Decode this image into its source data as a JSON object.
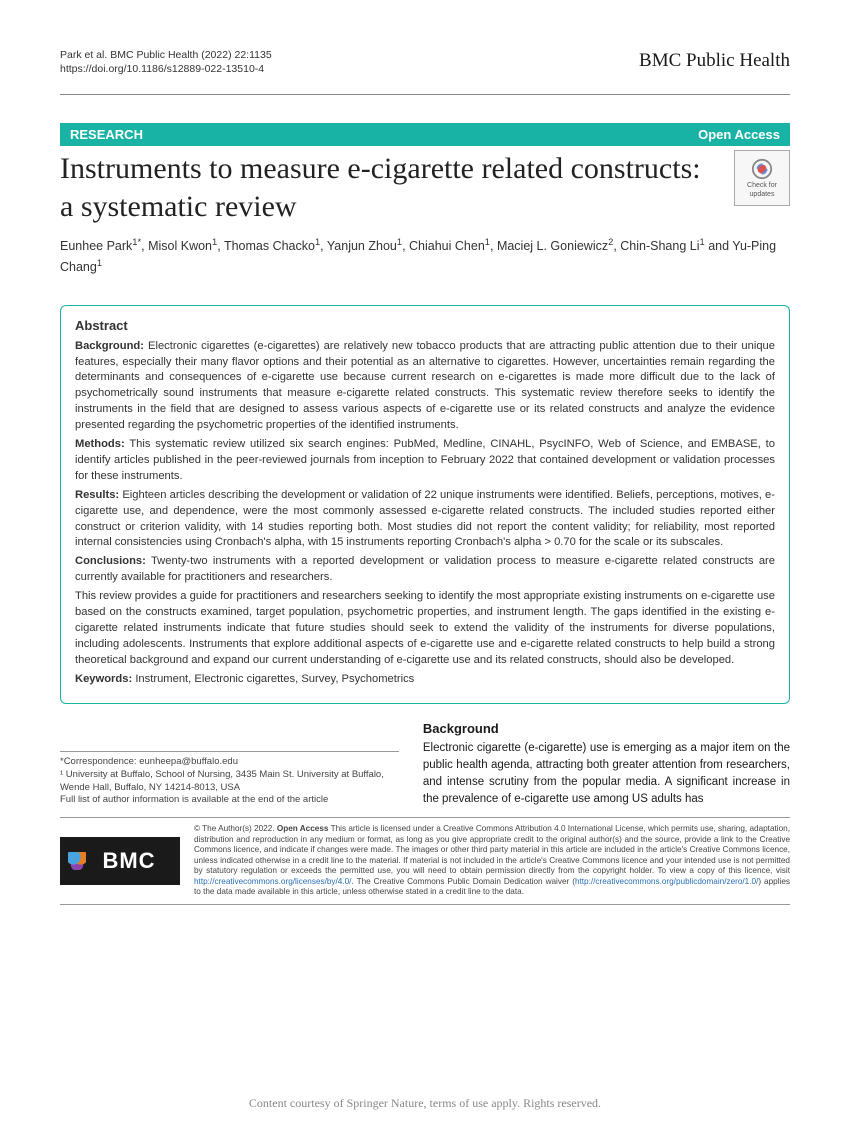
{
  "header": {
    "citation": "Park et al. BMC Public Health    (2022) 22:1135",
    "doi_label": "https://doi.org/10.1186/s12889-022-13510-4",
    "journal": "BMC Public Health"
  },
  "badge": {
    "left": "RESEARCH",
    "right": "Open Access",
    "color": "#19b3a6"
  },
  "title": "Instruments to measure e-cigarette related constructs: a systematic review",
  "check_updates": {
    "line1": "Check for",
    "line2": "updates"
  },
  "authors_html": "Eunhee Park<sup>1*</sup>, Misol Kwon<sup>1</sup>, Thomas Chacko<sup>1</sup>, Yanjun Zhou<sup>1</sup>, Chiahui Chen<sup>1</sup>, Maciej L. Goniewicz<sup>2</sup>, Chin-Shang Li<sup>1</sup> and Yu-Ping Chang<sup>1</sup>",
  "abstract": {
    "heading": "Abstract",
    "background_label": "Background:",
    "background": "Electronic cigarettes (e-cigarettes) are relatively new tobacco products that are attracting public attention due to their unique features, especially their many flavor options and their potential as an alternative to cigarettes. However, uncertainties remain regarding the determinants and consequences of e-cigarette use because current research on e-cigarettes is made more difficult due to the lack of psychometrically sound instruments that measure e-cigarette related constructs. This systematic review therefore seeks to identify the instruments in the field that are designed to assess various aspects of e-cigarette use or its related constructs and analyze the evidence presented regarding the psychometric properties of the identified instruments.",
    "methods_label": "Methods:",
    "methods": "This systematic review utilized six search engines: PubMed, Medline, CINAHL, PsycINFO, Web of Science, and EMBASE, to identify articles published in the peer-reviewed journals from inception to February 2022 that contained development or validation processes for these instruments.",
    "results_label": "Results:",
    "results": "Eighteen articles describing the development or validation of 22 unique instruments were identified. Beliefs, perceptions, motives, e-cigarette use, and dependence, were the most commonly assessed e-cigarette related constructs. The included studies reported either construct or criterion validity, with 14 studies reporting both. Most studies did not report the content validity; for reliability, most reported internal consistencies using Cronbach's alpha, with 15 instruments reporting Cronbach's alpha > 0.70 for the scale or its subscales.",
    "conclusions_label": "Conclusions:",
    "conclusions": "Twenty-two instruments with a reported development or validation process to measure e-cigarette related constructs are currently available for practitioners and researchers.",
    "summary": "This review provides a guide for practitioners and researchers seeking to identify the most appropriate existing instruments on e-cigarette use based on the constructs examined, target population, psychometric properties, and instrument length. The gaps identified in the existing e-cigarette related instruments indicate that future studies should seek to extend the validity of the instruments for diverse populations, including adolescents. Instruments that explore additional aspects of e-cigarette use and e-cigarette related constructs to help build a strong theoretical background and expand our current understanding of e-cigarette use and its related constructs, should also be developed.",
    "keywords_label": "Keywords:",
    "keywords": "Instrument, Electronic cigarettes, Survey, Psychometrics"
  },
  "body": {
    "bg_heading": "Background",
    "bg_text": "Electronic cigarette (e-cigarette) use is emerging as a major item on the public health agenda, attracting both greater attention from researchers, and intense scrutiny from the popular media. A significant increase in the prevalence of e-cigarette use among US adults has"
  },
  "correspondence": {
    "email_label": "*Correspondence:",
    "email": "eunheepa@buffalo.edu",
    "affil": "¹ University at Buffalo, School of Nursing, 3435 Main St. University at Buffalo, Wende Hall, Buffalo, NY 14214-8013, USA",
    "note": "Full list of author information is available at the end of the article"
  },
  "footer": {
    "bmc": "BMC",
    "license_pre": "© The Author(s) 2022. ",
    "license_bold": "Open Access",
    "license": " This article is licensed under a Creative Commons Attribution 4.0 International License, which permits use, sharing, adaptation, distribution and reproduction in any medium or format, as long as you give appropriate credit to the original author(s) and the source, provide a link to the Creative Commons licence, and indicate if changes were made. The images or other third party material in this article are included in the article's Creative Commons licence, unless indicated otherwise in a credit line to the material. If material is not included in the article's Creative Commons licence and your intended use is not permitted by statutory regulation or exceeds the permitted use, you will need to obtain permission directly from the copyright holder. To view a copy of this licence, visit ",
    "license_link1": "http://creativecommons.org/licenses/by/4.0/",
    "license_mid": ". The Creative Commons Public Domain Dedication waiver (",
    "license_link2": "http://creativecommons.org/publicdomain/zero/1.0/",
    "license_end": ") applies to the data made available in this article, unless otherwise stated in a credit line to the data."
  },
  "courtesy": "Content courtesy of Springer Nature, terms of use apply. Rights reserved."
}
